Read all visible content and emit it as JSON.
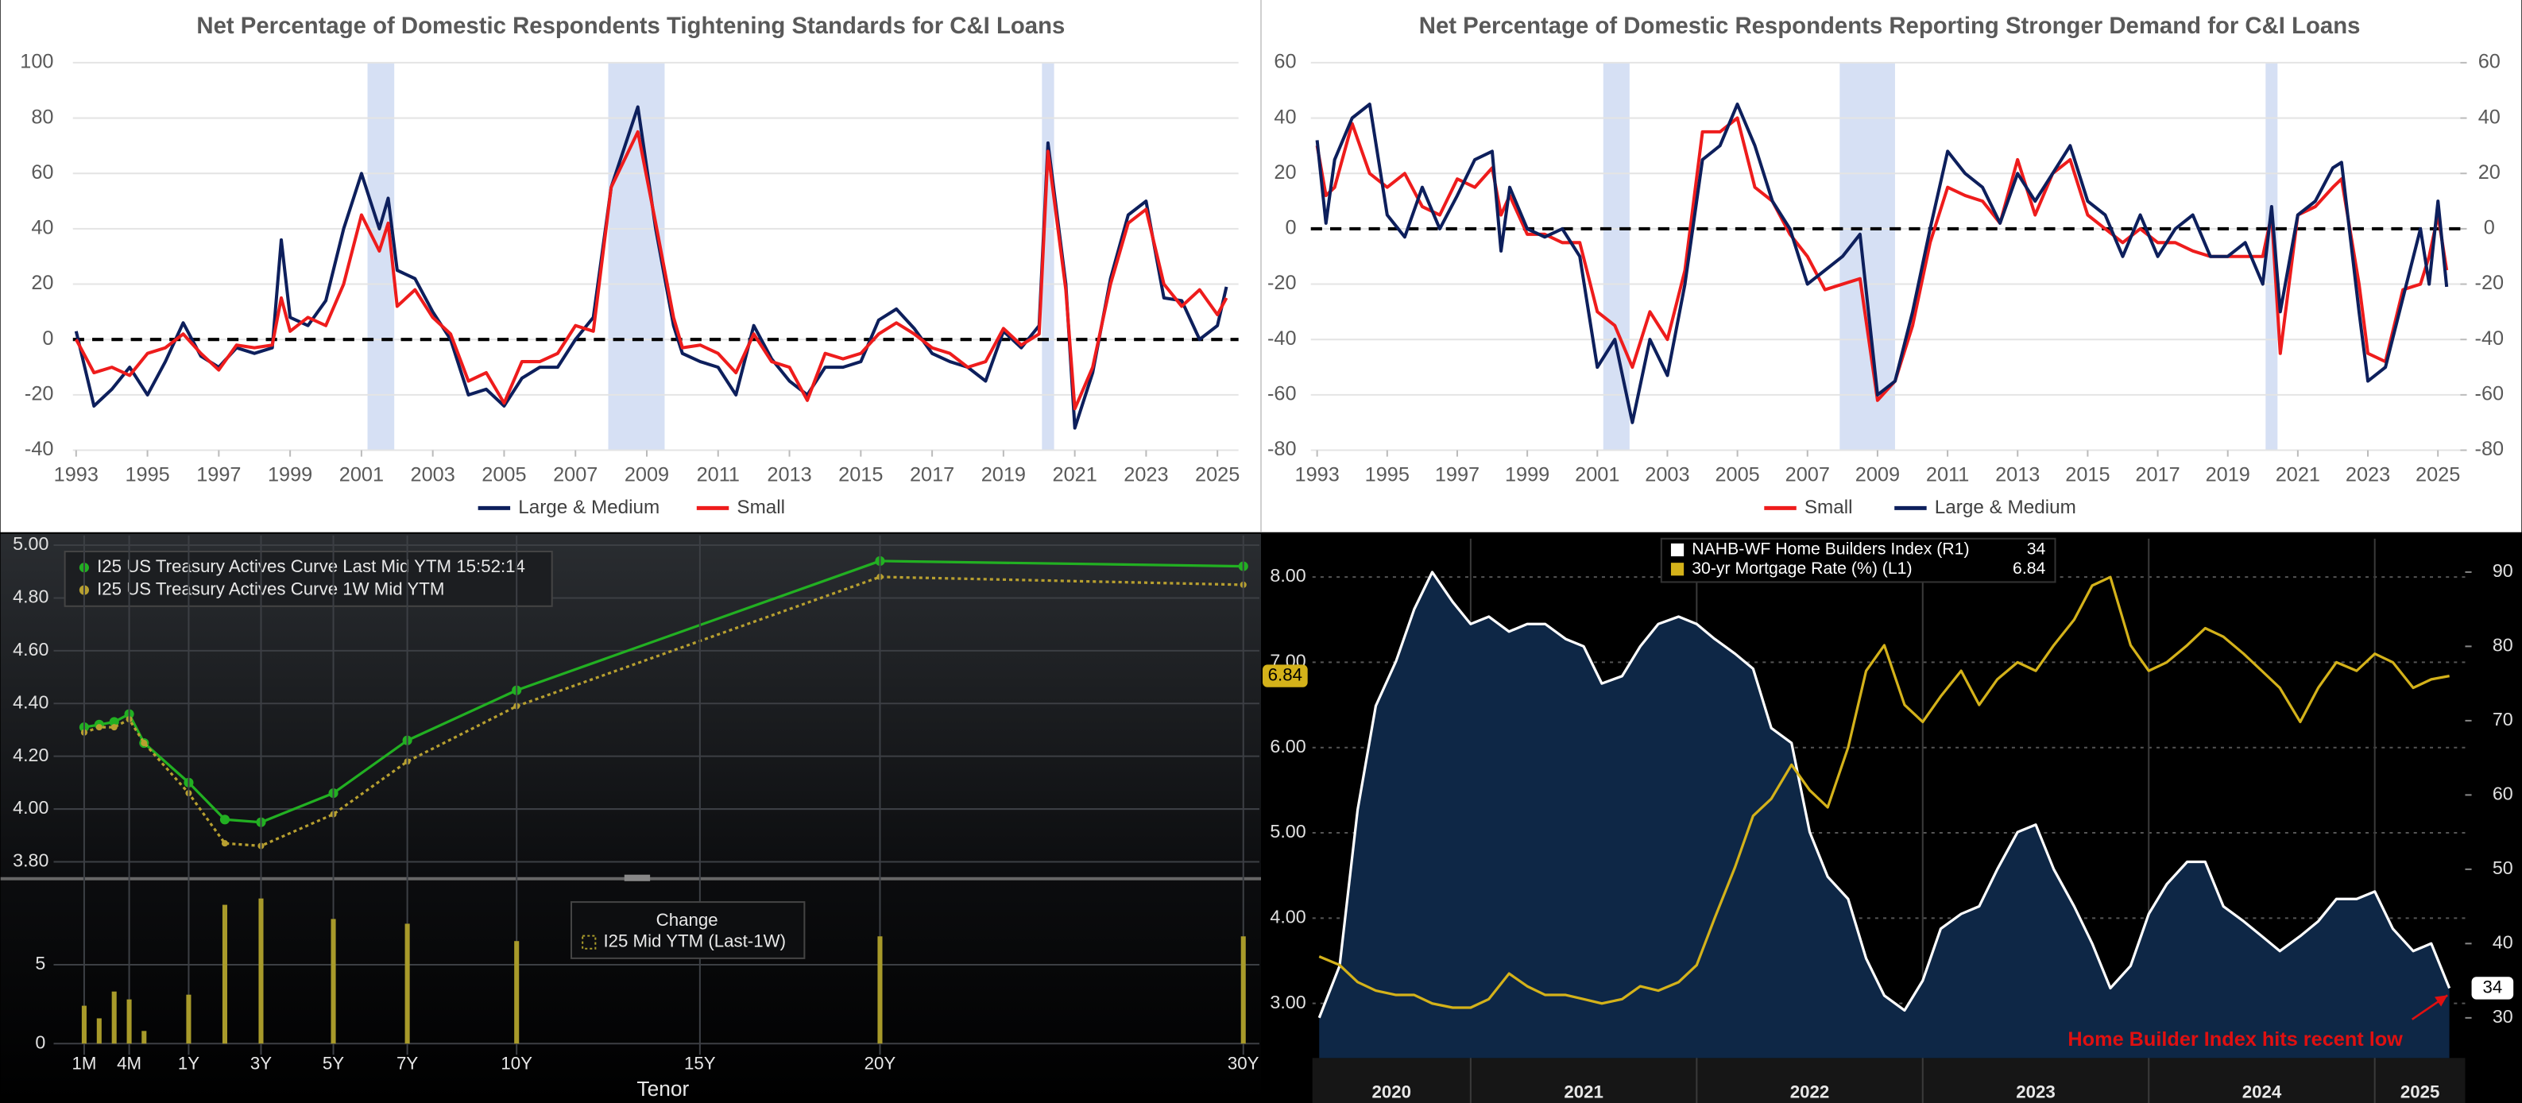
{
  "chart_data": [
    {
      "type": "line",
      "title": "Net Percentage of Domestic Respondents Tightening Standards for C&I Loans",
      "x": [
        1993,
        1993.5,
        1994,
        1994.5,
        1995,
        1995.5,
        1996,
        1996.5,
        1997,
        1997.5,
        1998,
        1998.5,
        1998.75,
        1999,
        1999.5,
        2000,
        2000.5,
        2001,
        2001.5,
        2001.75,
        2002,
        2002.5,
        2003,
        2003.5,
        2004,
        2004.5,
        2005,
        2005.5,
        2006,
        2006.5,
        2007,
        2007.5,
        2008,
        2008.75,
        2009.25,
        2009.75,
        2010,
        2010.5,
        2011,
        2011.5,
        2012,
        2012.5,
        2013,
        2013.5,
        2014,
        2014.5,
        2015,
        2015.5,
        2016,
        2016.5,
        2017,
        2017.5,
        2018,
        2018.5,
        2019,
        2019.5,
        2020,
        2020.25,
        2020.75,
        2021,
        2021.5,
        2022,
        2022.5,
        2023,
        2023.5,
        2024,
        2024.5,
        2025,
        2025.25
      ],
      "series": [
        {
          "name": "Large & Medium",
          "color": "#0d1f5c",
          "values": [
            3,
            -24,
            -18,
            -10,
            -20,
            -8,
            6,
            -6,
            -10,
            -3,
            -5,
            -3,
            36,
            8,
            5,
            14,
            40,
            60,
            40,
            51,
            25,
            22,
            10,
            0,
            -20,
            -18,
            -24,
            -14,
            -10,
            -10,
            0,
            8,
            55,
            84,
            40,
            5,
            -5,
            -8,
            -10,
            -20,
            5,
            -7,
            -15,
            -20,
            -10,
            -10,
            -8,
            7,
            11,
            4,
            -5,
            -8,
            -10,
            -15,
            3,
            -3,
            5,
            71,
            20,
            -32,
            -12,
            22,
            45,
            50,
            15,
            14,
            0,
            5,
            19
          ]
        },
        {
          "name": "Small",
          "color": "#ee1c1c",
          "values": [
            0,
            -12,
            -10,
            -13,
            -5,
            -3,
            2,
            -5,
            -11,
            -2,
            -3,
            -2,
            15,
            3,
            8,
            5,
            20,
            45,
            32,
            42,
            12,
            18,
            8,
            2,
            -15,
            -12,
            -23,
            -8,
            -8,
            -5,
            5,
            3,
            55,
            75,
            42,
            8,
            -3,
            -2,
            -5,
            -12,
            2,
            -8,
            -10,
            -22,
            -5,
            -7,
            -5,
            2,
            6,
            2,
            -3,
            -5,
            -10,
            -8,
            4,
            -2,
            2,
            68,
            18,
            -25,
            -10,
            20,
            42,
            47,
            20,
            12,
            18,
            9,
            15
          ]
        }
      ],
      "recessions": [
        [
          2001.17,
          2001.92
        ],
        [
          2007.92,
          2009.5
        ],
        [
          2020.08,
          2020.42
        ]
      ],
      "xlim": [
        1992.91,
        2025.59
      ],
      "xticks": [
        1993,
        1995,
        1997,
        1999,
        2001,
        2003,
        2005,
        2007,
        2009,
        2011,
        2013,
        2015,
        2017,
        2019,
        2021,
        2023,
        2025
      ],
      "ylim": [
        -40,
        100
      ],
      "yticks": [
        -40,
        -20,
        0,
        20,
        40,
        60,
        80,
        100
      ],
      "grid": true,
      "zero_line": true,
      "legend": "bottom"
    },
    {
      "type": "line",
      "title": "Net Percentage of Domestic Respondents Reporting Stronger Demand for C&I Loans",
      "x": [
        1993,
        1993.25,
        1993.5,
        1994,
        1994.5,
        1995,
        1995.5,
        1996,
        1996.5,
        1997,
        1997.5,
        1998,
        1998.25,
        1998.5,
        1999,
        1999.5,
        2000,
        2000.5,
        2001,
        2001.5,
        2002,
        2002.5,
        2003,
        2003.5,
        2004,
        2004.5,
        2005,
        2005.5,
        2006,
        2006.5,
        2007,
        2007.5,
        2008,
        2008.5,
        2009,
        2009.5,
        2010,
        2010.5,
        2011,
        2011.5,
        2012,
        2012.5,
        2013,
        2013.5,
        2014,
        2014.5,
        2015,
        2015.5,
        2016,
        2016.5,
        2017,
        2017.5,
        2018,
        2018.5,
        2019,
        2019.5,
        2020,
        2020.25,
        2020.5,
        2021,
        2021.5,
        2022,
        2022.25,
        2022.75,
        2023,
        2023.5,
        2024,
        2024.5,
        2024.75,
        2025,
        2025.25
      ],
      "series": [
        {
          "name": "Small",
          "color": "#ee1c1c",
          "values": [
            30,
            12,
            15,
            38,
            20,
            15,
            20,
            8,
            5,
            18,
            15,
            22,
            5,
            12,
            -2,
            -2,
            -5,
            -5,
            -30,
            -35,
            -50,
            -30,
            -40,
            -15,
            35,
            35,
            40,
            15,
            10,
            -2,
            -10,
            -22,
            -20,
            -18,
            -62,
            -55,
            -35,
            -5,
            15,
            12,
            10,
            2,
            25,
            5,
            20,
            25,
            5,
            0,
            -5,
            0,
            -5,
            -5,
            -8,
            -10,
            -10,
            -10,
            -10,
            5,
            -45,
            5,
            8,
            15,
            18,
            -20,
            -45,
            -48,
            -22,
            -20,
            -10,
            5,
            -15
          ]
        },
        {
          "name": "Large & Medium",
          "color": "#0d1f5c",
          "values": [
            32,
            2,
            25,
            40,
            45,
            5,
            -3,
            15,
            0,
            12,
            25,
            28,
            -8,
            15,
            0,
            -3,
            0,
            -10,
            -50,
            -40,
            -70,
            -40,
            -53,
            -20,
            25,
            30,
            45,
            30,
            10,
            0,
            -20,
            -15,
            -10,
            -2,
            -60,
            -55,
            -30,
            0,
            28,
            20,
            15,
            2,
            20,
            10,
            20,
            30,
            10,
            5,
            -10,
            5,
            -10,
            0,
            5,
            -10,
            -10,
            -5,
            -20,
            8,
            -30,
            5,
            10,
            22,
            24,
            -30,
            -55,
            -50,
            -25,
            0,
            -20,
            10,
            -21
          ]
        }
      ],
      "recessions": [
        [
          2001.17,
          2001.92
        ],
        [
          2007.92,
          2009.5
        ],
        [
          2020.08,
          2020.42
        ]
      ],
      "xlim": [
        1992.82,
        2025.64
      ],
      "xticks": [
        1993,
        1995,
        1997,
        1999,
        2001,
        2003,
        2005,
        2007,
        2009,
        2011,
        2013,
        2015,
        2017,
        2019,
        2021,
        2023,
        2025
      ],
      "ylim": [
        -80,
        60
      ],
      "yticks": [
        -80,
        -60,
        -40,
        -20,
        0,
        20,
        40,
        60
      ],
      "y2lim": [
        -80,
        60
      ],
      "y2ticks": [
        -80,
        -60,
        -40,
        -20,
        0,
        20,
        40,
        60
      ],
      "grid": true,
      "zero_line": true,
      "legend": "bottom"
    },
    {
      "type": "line",
      "x": [
        0.0833,
        0.1667,
        0.25,
        0.3333,
        0.5,
        1,
        2,
        3,
        5,
        7,
        10,
        20,
        30
      ],
      "series": [
        {
          "name": "I25 US Treasury Actives Curve Last Mid YTM 15:52:14",
          "color": "#22b022",
          "markers": true,
          "values": [
            4.31,
            4.32,
            4.33,
            4.36,
            4.25,
            4.1,
            3.96,
            3.95,
            4.06,
            4.26,
            4.45,
            4.94,
            4.92
          ]
        },
        {
          "name": "I25 US Treasury Actives Curve 1W Mid YTM",
          "color": "#b8a030",
          "markers": true,
          "style": "dotted",
          "values": [
            4.29,
            4.31,
            4.31,
            4.34,
            4.25,
            4.06,
            3.87,
            3.86,
            3.98,
            4.18,
            4.39,
            4.88,
            4.85
          ]
        }
      ],
      "ylim": [
        3.745,
        5.037
      ],
      "yticks": [
        {
          "value": 3.8,
          "label": "3.80"
        },
        {
          "value": 4.0,
          "label": "4.00"
        },
        {
          "value": 4.2,
          "label": "4.20"
        },
        {
          "value": 4.4,
          "label": "4.40"
        },
        {
          "value": 4.6,
          "label": "4.60"
        },
        {
          "value": 4.8,
          "label": "4.80"
        },
        {
          "value": 5.0,
          "label": "5.00"
        }
      ],
      "grid": true,
      "legend": "top-left"
    },
    {
      "type": "bar",
      "legend_title": "Change",
      "x_label": "Tenor",
      "x": [
        0.0833,
        0.1667,
        0.25,
        0.3333,
        0.5,
        1,
        2,
        3,
        5,
        7,
        10,
        20,
        30
      ],
      "series": [
        {
          "name": "I25 Mid YTM (Last-1W)",
          "color": "#a89a2a",
          "values": [
            2.4,
            1.6,
            3.3,
            2.8,
            0.8,
            3.1,
            8.8,
            9.2,
            7.9,
            7.6,
            6.5,
            6.8,
            6.8
          ]
        }
      ],
      "xlim": [
        0,
        30.4
      ],
      "xticks": [
        {
          "value": 0.0833,
          "label": "1M"
        },
        {
          "value": 0.3333,
          "label": "4M"
        },
        {
          "value": 1,
          "label": "1Y"
        },
        {
          "value": 3,
          "label": "3Y"
        },
        {
          "value": 5,
          "label": "5Y"
        },
        {
          "value": 7,
          "label": "7Y"
        },
        {
          "value": 10,
          "label": "10Y"
        },
        {
          "value": 15,
          "label": "15Y"
        },
        {
          "value": 20,
          "label": "20Y"
        },
        {
          "value": 30,
          "label": "30Y"
        }
      ],
      "ylim": [
        -0.71,
        10.2
      ],
      "yticks": [
        0,
        5
      ],
      "grid": true
    },
    {
      "type": "line",
      "x": [
        2020.33,
        2020.42,
        2020.5,
        2020.58,
        2020.67,
        2020.75,
        2020.83,
        2020.92,
        2021.0,
        2021.08,
        2021.17,
        2021.25,
        2021.33,
        2021.42,
        2021.5,
        2021.58,
        2021.67,
        2021.75,
        2021.83,
        2021.92,
        2022.0,
        2022.08,
        2022.17,
        2022.25,
        2022.33,
        2022.42,
        2022.5,
        2022.58,
        2022.67,
        2022.75,
        2022.83,
        2022.92,
        2023.0,
        2023.08,
        2023.17,
        2023.25,
        2023.33,
        2023.42,
        2023.5,
        2023.58,
        2023.67,
        2023.75,
        2023.83,
        2023.92,
        2024.0,
        2024.08,
        2024.17,
        2024.25,
        2024.33,
        2024.42,
        2024.5,
        2024.58,
        2024.67,
        2024.75,
        2024.83,
        2024.92,
        2025.0,
        2025.08,
        2025.17,
        2025.25,
        2025.33
      ],
      "series": [
        {
          "name": "NAHB-WF Home Builders Index (R1)",
          "color": "#ffffff",
          "axis": "y2",
          "area": true,
          "values": [
            30,
            37,
            58,
            72,
            78,
            85,
            90,
            86,
            83,
            84,
            82,
            83,
            83,
            81,
            80,
            75,
            76,
            80,
            83,
            84,
            83,
            81,
            79,
            77,
            69,
            67,
            55,
            49,
            46,
            38,
            33,
            31,
            35,
            42,
            44,
            45,
            50,
            55,
            56,
            50,
            45,
            40,
            34,
            37,
            44,
            48,
            51,
            51,
            45,
            43,
            41,
            39,
            41,
            43,
            46,
            46,
            47,
            42,
            39,
            40,
            34
          ]
        },
        {
          "name": "30-yr Mortgage Rate (%) (L1)",
          "color": "#d4b21a",
          "values": [
            3.55,
            3.45,
            3.25,
            3.15,
            3.1,
            3.1,
            3.0,
            2.95,
            2.95,
            3.05,
            3.35,
            3.2,
            3.1,
            3.1,
            3.05,
            3.0,
            3.05,
            3.2,
            3.15,
            3.25,
            3.45,
            4.0,
            4.6,
            5.2,
            5.4,
            5.8,
            5.5,
            5.3,
            6.0,
            6.9,
            7.2,
            6.5,
            6.3,
            6.6,
            6.9,
            6.5,
            6.8,
            7.0,
            6.9,
            7.2,
            7.5,
            7.9,
            8.0,
            7.2,
            6.9,
            7.0,
            7.2,
            7.4,
            7.3,
            7.1,
            6.9,
            6.7,
            6.3,
            6.7,
            7.0,
            6.9,
            7.1,
            7.0,
            6.7,
            6.8,
            6.84
          ]
        }
      ],
      "xlim": [
        2020.3,
        2025.4
      ],
      "xticks": [
        2020,
        2021,
        2022,
        2023,
        2024,
        2025
      ],
      "ylim": [
        2.36,
        8.45
      ],
      "yticks": [
        {
          "value": 3,
          "label": "3.00"
        },
        {
          "value": 4,
          "label": "4.00"
        },
        {
          "value": 5,
          "label": "5.00"
        },
        {
          "value": 6,
          "label": "6.00"
        },
        {
          "value": 7,
          "label": "7.00"
        },
        {
          "value": 8,
          "label": "8.00"
        }
      ],
      "y2lim": [
        24.6,
        94.5
      ],
      "y2ticks": [
        30,
        40,
        50,
        60,
        70,
        80,
        90
      ],
      "grid": true,
      "legend": "top",
      "annotation": "Home Builder Index hits recent low"
    }
  ]
}
